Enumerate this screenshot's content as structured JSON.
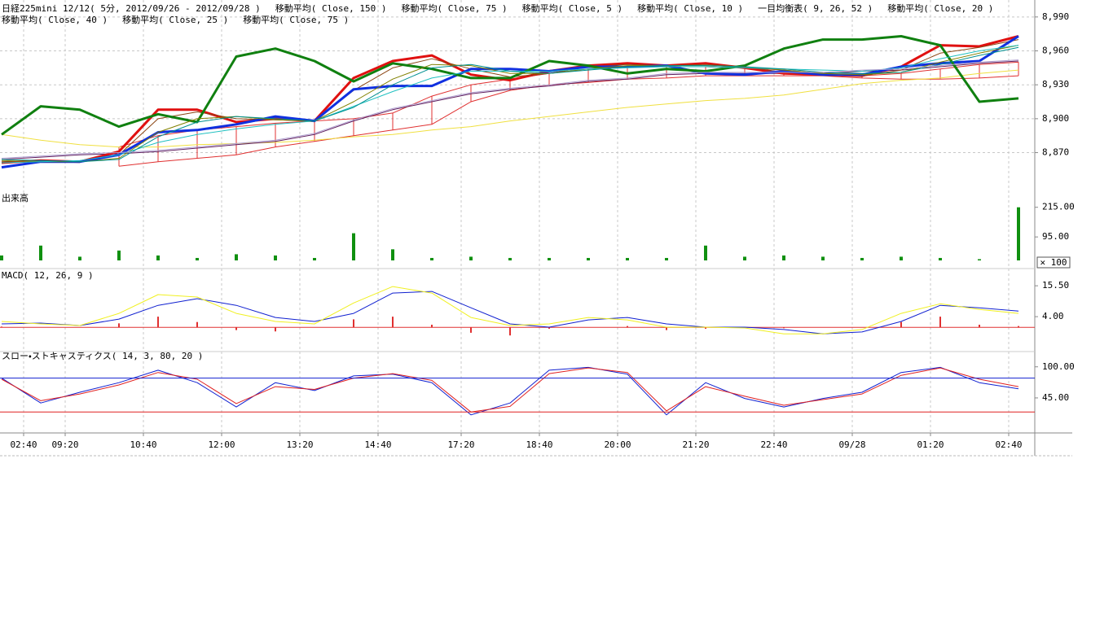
{
  "chart_data": [
    {
      "type": "line",
      "title": "日経225mini 12/12( 5分, 2012/09/26 - 2012/09/28 )",
      "x": [
        0,
        8,
        16,
        24,
        32,
        40,
        48,
        56,
        64,
        72,
        80,
        88,
        96,
        104,
        112,
        120,
        128,
        136,
        144,
        152,
        160,
        168,
        176,
        184,
        192,
        200,
        208
      ],
      "xlim": [
        0,
        211
      ],
      "xticks": [
        {
          "value": 4.5,
          "label": "02:40"
        },
        {
          "value": 13,
          "label": "09:20"
        },
        {
          "value": 29,
          "label": "10:40"
        },
        {
          "value": 45,
          "label": "12:00"
        },
        {
          "value": 61,
          "label": "13:20"
        },
        {
          "value": 77,
          "label": "14:40"
        },
        {
          "value": 94,
          "label": "17:20"
        },
        {
          "value": 110,
          "label": "18:40"
        },
        {
          "value": 126,
          "label": "20:00"
        },
        {
          "value": 142,
          "label": "21:20"
        },
        {
          "value": 158,
          "label": "22:40"
        },
        {
          "value": 174,
          "label": "09/28"
        },
        {
          "value": 190,
          "label": "01:20"
        },
        {
          "value": 206,
          "label": "02:40"
        }
      ],
      "ylim": [
        8838,
        9005
      ],
      "yticks": [
        {
          "value": 8990,
          "label": "8,990"
        },
        {
          "value": 8960,
          "label": "8,960"
        },
        {
          "value": 8930,
          "label": "8,930"
        },
        {
          "value": 8900,
          "label": "8,900"
        },
        {
          "value": 8870,
          "label": "8,870"
        }
      ],
      "grid": true,
      "series": [
        {
          "name": "移動平均( Close, 150 )",
          "color": "#f0e040",
          "line_width": 1,
          "values": [
            8886,
            8881,
            8877,
            8875,
            8875,
            8877,
            8878,
            8879,
            8881,
            8884,
            8886,
            8890,
            8893,
            8898,
            8902,
            8906,
            8910,
            8913,
            8916,
            8918,
            8921,
            8926,
            8931,
            8934,
            8936,
            8940,
            8943
          ]
        },
        {
          "name": "移動平均( Close, 75 )",
          "color": "#602060",
          "line_width": 1,
          "values": [
            8864,
            8866,
            8868,
            8869,
            8871,
            8874,
            8877,
            8880,
            8886,
            8898,
            8908,
            8915,
            8922,
            8926,
            8929,
            8933,
            8935,
            8939,
            8940,
            8940,
            8940,
            8940,
            8942,
            8943,
            8946,
            8949,
            8951
          ]
        },
        {
          "name": "移動平均( Close, 5 )",
          "color": "#e01010",
          "line_width": 3,
          "values": [
            8861,
            8863,
            8862,
            8871,
            8908,
            8908,
            8897,
            8900,
            8898,
            8936,
            8951,
            8956,
            8939,
            8934,
            8942,
            8947,
            8949,
            8947,
            8949,
            8945,
            8940,
            8939,
            8938,
            8946,
            8965,
            8964,
            8973
          ]
        },
        {
          "name": "移動平均( Close, 10 )",
          "color": "#8b4513",
          "line_width": 1,
          "values": [
            8862,
            8863,
            8862,
            8868,
            8900,
            8906,
            8900,
            8899,
            8898,
            8925,
            8945,
            8953,
            8944,
            8937,
            8940,
            8946,
            8948,
            8947,
            8948,
            8946,
            8941,
            8939,
            8938,
            8943,
            8958,
            8963,
            8970
          ]
        },
        {
          "name": "一目均衡表( 9, 26, 52 )",
          "color": "#1030e0",
          "line_width": 3,
          "values": [
            8857,
            8862,
            8862,
            8868,
            8888,
            8890,
            8895,
            8902,
            8898,
            8926,
            8929,
            8929,
            8944,
            8944,
            8942,
            8946,
            8946,
            8947,
            8940,
            8939,
            8942,
            8939,
            8939,
            8946,
            8949,
            8951,
            8973
          ],
          "lagging": [
            8886,
            8911,
            8908,
            8893,
            8904,
            8897,
            8955,
            8962,
            8951,
            8933,
            8949,
            8944,
            8936,
            8936,
            8951,
            8947,
            8940,
            8944,
            8942,
            8947,
            8962,
            8970,
            8970,
            8973,
            8965,
            8915,
            8918
          ],
          "lagging_color": "#108010",
          "span_a": [
            null,
            null,
            null,
            8875,
            8885,
            8890,
            8893,
            8896,
            8898,
            8900,
            8905,
            8920,
            8930,
            8935,
            8940,
            8944,
            8946,
            8946,
            8946,
            8945,
            8943,
            8940,
            8938,
            8940,
            8944,
            8948,
            8950
          ],
          "span_b": [
            null,
            null,
            null,
            8858,
            8862,
            8865,
            8868,
            8875,
            8880,
            8885,
            8890,
            8895,
            8915,
            8925,
            8930,
            8932,
            8935,
            8936,
            8938,
            8938,
            8938,
            8938,
            8936,
            8935,
            8935,
            8936,
            8938
          ],
          "span_color": "#e03030"
        },
        {
          "name": "移動平均( Close, 20 )",
          "color": "#808000",
          "line_width": 1,
          "values": [
            8863,
            8862,
            8862,
            8865,
            8888,
            8900,
            8902,
            8899,
            8898,
            8915,
            8935,
            8948,
            8947,
            8940,
            8940,
            8944,
            8947,
            8947,
            8947,
            8946,
            8943,
            8940,
            8939,
            8941,
            8950,
            8958,
            8965
          ]
        },
        {
          "name": "移動平均( Close, 40 )",
          "color": "#20c0c0",
          "line_width": 1,
          "values": [
            8861,
            8862,
            8863,
            8868,
            8879,
            8886,
            8891,
            8895,
            8898,
            8911,
            8924,
            8936,
            8942,
            8942,
            8942,
            8944,
            8945,
            8946,
            8946,
            8945,
            8944,
            8943,
            8942,
            8945,
            8953,
            8960,
            8965
          ]
        },
        {
          "name": "移動平均( Close, 25 )",
          "color": "#009090",
          "line_width": 1,
          "values": [
            8864,
            8863,
            8862,
            8864,
            8884,
            8897,
            8902,
            8900,
            8898,
            8910,
            8930,
            8945,
            8948,
            8942,
            8940,
            8943,
            8946,
            8947,
            8947,
            8946,
            8944,
            8941,
            8940,
            8941,
            8948,
            8956,
            8963
          ]
        },
        {
          "name": "移動平均( Close, 75 )",
          "color": "#b0a0d0",
          "line_width": 1,
          "values": [
            8865,
            8867,
            8869,
            8870,
            8872,
            8875,
            8878,
            8881,
            8887,
            8899,
            8909,
            8916,
            8923,
            8927,
            8930,
            8934,
            8936,
            8940,
            8941,
            8941,
            8941,
            8941,
            8943,
            8944,
            8947,
            8950,
            8952
          ]
        }
      ]
    },
    {
      "type": "bar",
      "title": "出来高",
      "unit_label": "✕ 100",
      "color": "#109010",
      "values": [
        20,
        60,
        15,
        40,
        20,
        10,
        25,
        20,
        10,
        110,
        45,
        10,
        15,
        10,
        10,
        10,
        10,
        10,
        60,
        15,
        20,
        15,
        10,
        15,
        10,
        5,
        215
      ],
      "ylim": [
        0,
        270
      ],
      "yticks": [
        {
          "value": 215,
          "label": "215.00"
        },
        {
          "value": 95,
          "label": "95.00"
        }
      ]
    },
    {
      "type": "line",
      "title": "MACD( 12, 26, 9 )",
      "ylim": [
        -9,
        21
      ],
      "yticks": [
        {
          "value": 15.5,
          "label": "15.50"
        },
        {
          "value": 4,
          "label": "4.00"
        }
      ],
      "series": [
        {
          "color": "#1020d0",
          "line_width": 1,
          "values": [
            1.3,
            1.6,
            0.7,
            3.1,
            8.2,
            10.7,
            8.2,
            3.7,
            2.2,
            5.2,
            12.8,
            13.4,
            7.3,
            1.3,
            0.1,
            2.8,
            3.7,
            1.3,
            0.1,
            0.1,
            -0.8,
            -2.4,
            -1.7,
            2.2,
            8.2,
            7.3,
            6.1
          ]
        },
        {
          "color": "#f0f020",
          "line_width": 1,
          "values": [
            2.2,
            1.3,
            0.7,
            5.2,
            12.2,
            11.3,
            5.2,
            2.2,
            1.3,
            9.1,
            15.2,
            12.8,
            3.7,
            0.7,
            1.3,
            3.7,
            2.8,
            0.1,
            0.1,
            -0.2,
            -2.4,
            -2.4,
            -0.8,
            5.2,
            8.8,
            6.7,
            5.2
          ]
        }
      ],
      "histogram": [
        0.3,
        0,
        0,
        1.5,
        4,
        2,
        -1,
        -1.5,
        0,
        3,
        4,
        1,
        -2,
        -3,
        -0.5,
        0,
        0.5,
        -1,
        -0.5,
        0,
        -0.3,
        0,
        0,
        2,
        4,
        1,
        0.5
      ],
      "histogram_color": "#e03030"
    },
    {
      "type": "line",
      "title": "スロー・ストキャスティクス( 14, 3, 80, 20 )",
      "ylim": [
        -17,
        127
      ],
      "yticks": [
        {
          "value": 100,
          "label": "100.00"
        },
        {
          "value": 45,
          "label": "45.00"
        }
      ],
      "levels": [
        80,
        20
      ],
      "level_colors": [
        "#1020d0",
        "#e02020"
      ],
      "series": [
        {
          "color": "#1020d0",
          "line_width": 1,
          "values": [
            80,
            36,
            55,
            72,
            94,
            72,
            29,
            72,
            58,
            84,
            87,
            72,
            15,
            36,
            94,
            99,
            87,
            15,
            72,
            44,
            29,
            44,
            55,
            90,
            99,
            72,
            61
          ]
        },
        {
          "color": "#e02020",
          "line_width": 1,
          "values": [
            78,
            40,
            52,
            68,
            90,
            78,
            35,
            65,
            60,
            80,
            88,
            76,
            20,
            30,
            88,
            98,
            90,
            22,
            65,
            48,
            32,
            42,
            52,
            85,
            98,
            78,
            65
          ]
        }
      ]
    }
  ]
}
